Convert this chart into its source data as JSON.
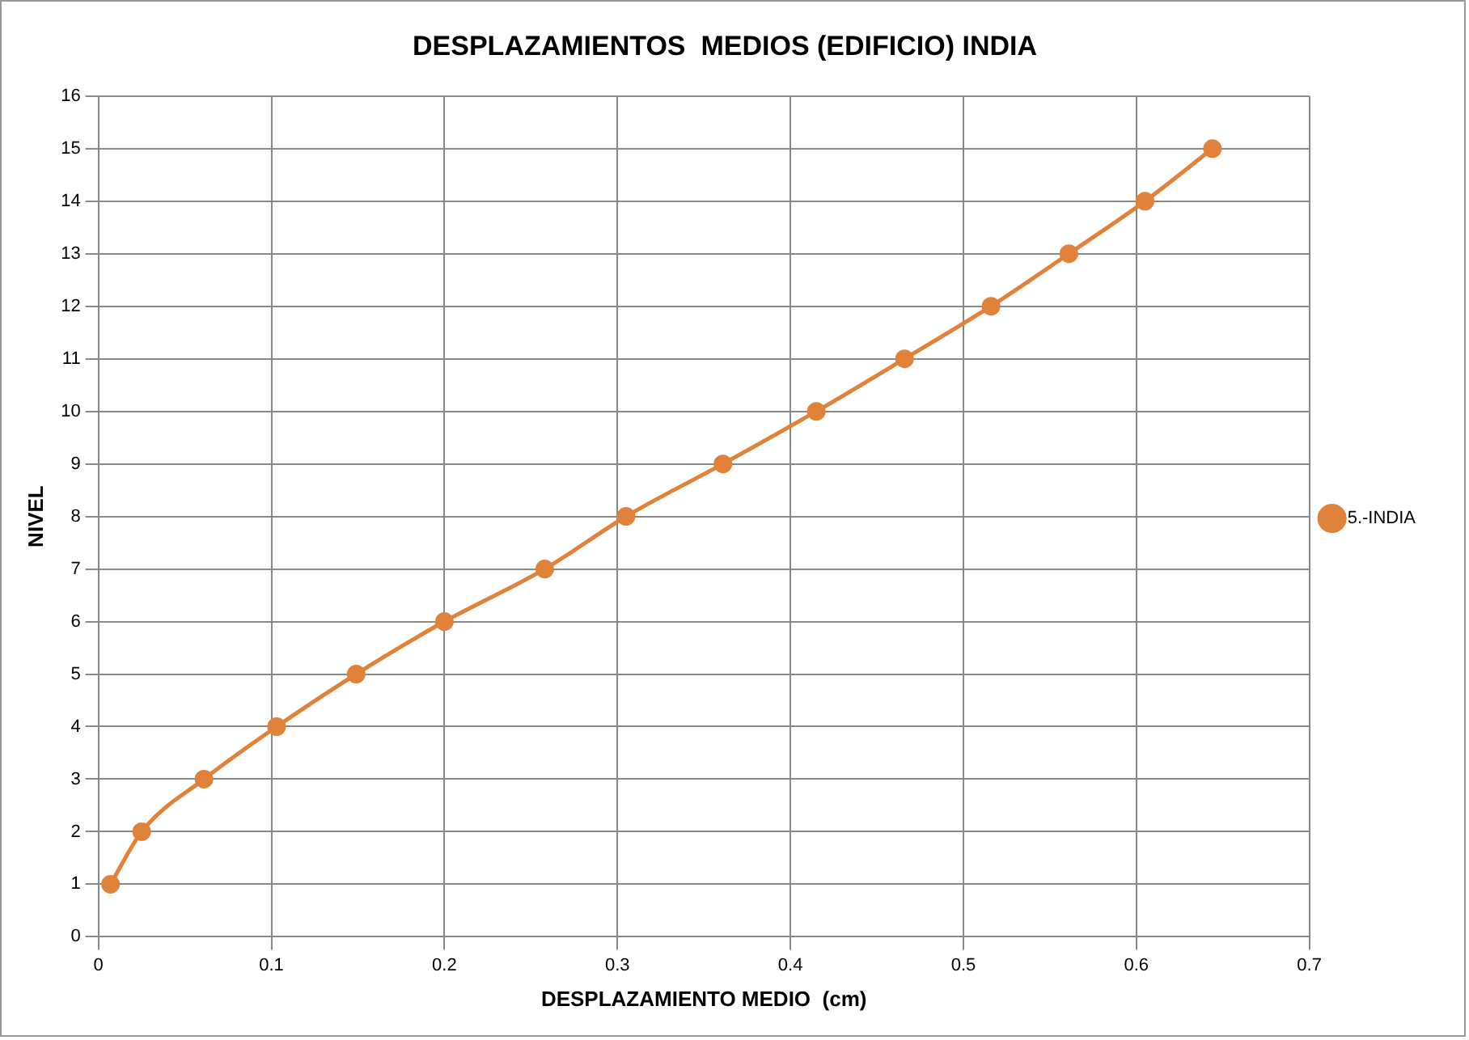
{
  "chart_data": {
    "type": "line",
    "title": "DESPLAZAMIENTOS  MEDIOS (EDIFICIO) INDIA",
    "xlabel": "DESPLAZAMIENTO MEDIO  (cm)",
    "ylabel": "NIVEL",
    "series": [
      {
        "name": "5.-INDIA",
        "color": "#e0823a",
        "x": [
          0.007,
          0.025,
          0.061,
          0.103,
          0.149,
          0.2,
          0.258,
          0.305,
          0.361,
          0.415,
          0.466,
          0.516,
          0.561,
          0.605,
          0.644
        ],
        "values": [
          1,
          2,
          3,
          4,
          5,
          6,
          7,
          8,
          9,
          10,
          11,
          12,
          13,
          14,
          15
        ]
      }
    ],
    "xlim": [
      0,
      0.7
    ],
    "xticks": [
      0,
      0.1,
      0.2,
      0.3,
      0.4,
      0.5,
      0.6,
      0.7
    ],
    "ylim": [
      0,
      16
    ],
    "yticks": [
      0,
      1,
      2,
      3,
      4,
      5,
      6,
      7,
      8,
      9,
      10,
      11,
      12,
      13,
      14,
      15,
      16
    ],
    "grid": true,
    "legend": "right",
    "marker": "circle",
    "line_style": "solid"
  }
}
